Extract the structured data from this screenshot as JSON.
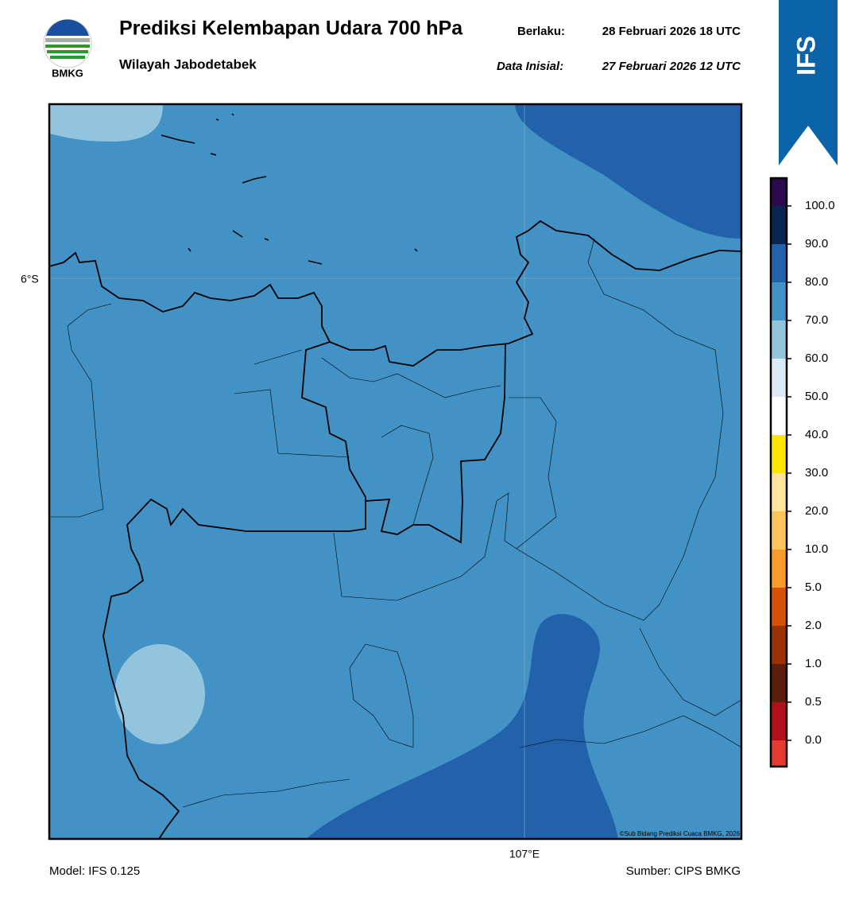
{
  "header": {
    "title": "Prediksi Kelembapan Udara 700 hPa",
    "subtitle": "Wilayah Jabodetabek",
    "valid_label": "Berlaku:",
    "valid_time": "28 Februari 2026 18 UTC",
    "init_label": "Data Inisial:",
    "init_time": "27 Februari 2026 12 UTC"
  },
  "logo": {
    "text": "BMKG"
  },
  "banner": {
    "text": "IFS"
  },
  "map": {
    "lat_label": "6°S",
    "lon_label": "107°E",
    "credit": "©Sub Bidang Prediksi Cuaca BMKG, 2026"
  },
  "colorbar": {
    "labels": [
      "100.0",
      "90.0",
      "80.0",
      "70.0",
      "60.0",
      "50.0",
      "40.0",
      "30.0",
      "20.0",
      "10.0",
      "5.0",
      "2.0",
      "1.0",
      "0.5",
      "0.0"
    ],
    "colors": [
      "#2d0a4e",
      "#08254f",
      "#2162ab",
      "#4292c6",
      "#93c4de",
      "#dbe9f6",
      "#ffffff",
      "#ffe600",
      "#fde49a",
      "#fdc45a",
      "#f99a2a",
      "#d65208",
      "#9a3206",
      "#5c1e0a",
      "#b0101a",
      "#e63a30"
    ]
  },
  "footer": {
    "model": "Model: IFS 0.125",
    "source": "Sumber: CIPS BMKG"
  }
}
